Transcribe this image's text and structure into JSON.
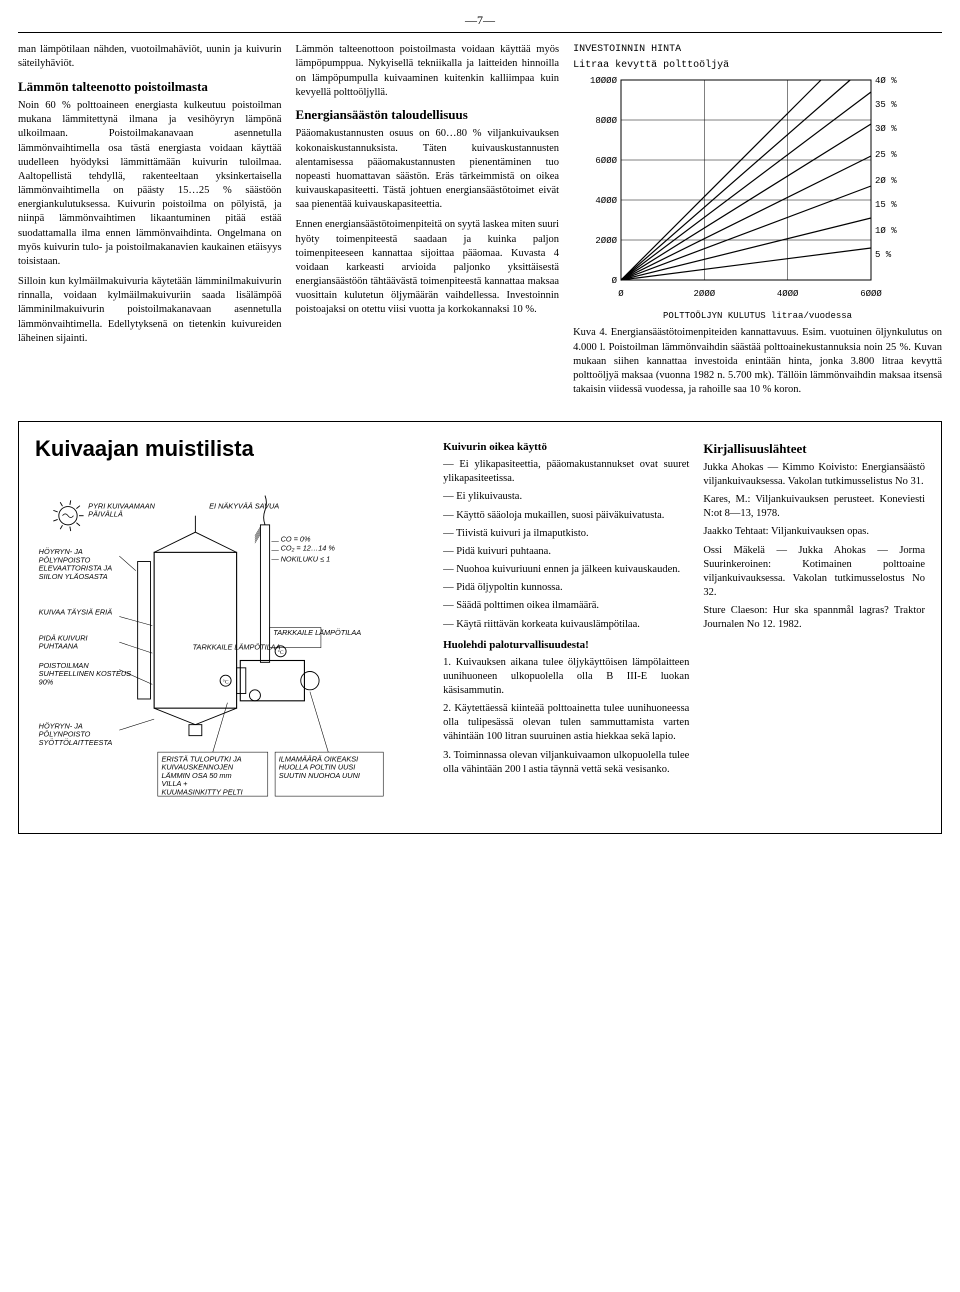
{
  "page_number": "—7—",
  "col1": {
    "p1": "man lämpötilaan nähden, vuotoilmahäviöt, uunin ja kuivurin säteilyhäviöt.",
    "h1": "Lämmön talteenotto poistoilmasta",
    "p2": "Noin 60 % polttoaineen energiasta kulkeutuu poistoilman mukana lämmitettynä ilmana ja vesihöyryn lämpönä ulkoilmaan. Poistoilmakanavaan asennetulla lämmönvaihtimella osa tästä energiasta voidaan käyttää uudelleen hyödyksi lämmittämään kuivurin tuloilmaa. Aaltopellistä tehdyllä, rakenteeltaan yksinkertaisella lämmönvaihtimella on päästy 15…25 % säästöön energiankulutuksessa. Kuivurin poistoilma on pölyistä, ja niinpä lämmönvaihtimen likaantuminen pitää estää suodattamalla ilma ennen lämmönvaihdinta. Ongelmana on myös kuivurin tulo- ja poistoilmakanavien kaukainen etäisyys toisistaan.",
    "p3": "Silloin kun kylmäilmakuivuria käytetään lämminilmakuivurin rinnalla, voidaan kylmäilmakuivuriin saada lisälämpöä lämminilmakuivurin poistoilmakanavaan asennetulla lämmönvaihtimella. Edellytyksenä on tietenkin kuivureiden läheinen sijainti."
  },
  "col2": {
    "p1": "Lämmön talteenottoon poistoilmasta voidaan käyttää myös lämpöpumppua. Nykyisellä tekniikalla ja laitteiden hinnoilla on lämpöpumpulla kuivaaminen kuitenkin kalliimpaa kuin kevyellä polttoöljyllä.",
    "h1": "Energiansäästön taloudellisuus",
    "p2": "Pääomakustannusten osuus on 60…80 % viljankuivauksen kokonaiskustannuksista. Täten kuivauskustannusten alentamisessa pääomakustannusten pienentäminen tuo nopeasti huomattavan säästön. Eräs tärkeimmistä on oikea kuivauskapasiteetti. Tästä johtuen energiansäästötoimet eivät saa pienentää kuivauskapasiteettia.",
    "p3": "Ennen energiansäästötoimenpiteitä on syytä laskea miten suuri hyöty toimenpiteestä saadaan ja kuinka paljon toimenpiteeseen kannattaa sijoittaa pääomaa. Kuvasta 4 voidaan karkeasti arvioida paljonko yksittäisestä energiansäästöön tähtäävästä toimenpiteestä kannattaa maksaa vuosittain kulutetun öljymäärän vaihdellessa. Investoinnin poistoajaksi on otettu viisi vuotta ja korkokannaksi 10 %."
  },
  "chart": {
    "title1": "INVESTOINNIN  HINTA",
    "title2": "Litraa  kevyttä polttoöljyä",
    "x_label": "POLTTOÖLJYN KULUTUS  litraa/vuodessa",
    "x_ticks": [
      "Ø",
      "2ØØØ",
      "4ØØØ",
      "6ØØØ"
    ],
    "y_ticks": [
      "Ø",
      "2ØØØ",
      "4ØØØ",
      "6ØØØ",
      "8ØØØ",
      "1ØØØØ"
    ],
    "pct_labels": [
      "4Ø %",
      "35 %",
      "3Ø %",
      "25 %",
      "2Ø %",
      "15 %",
      "1Ø %",
      "5 %"
    ],
    "xmin": 0,
    "xmax": 6000,
    "ymin": 0,
    "ymax": 10000,
    "series": [
      {
        "end_y": 10000,
        "end_x": 4800
      },
      {
        "end_y": 10000,
        "end_x": 5500
      },
      {
        "end_y": 9400,
        "end_x": 6000
      },
      {
        "end_y": 7800,
        "end_x": 6000
      },
      {
        "end_y": 6200,
        "end_x": 6000
      },
      {
        "end_y": 4700,
        "end_x": 6000
      },
      {
        "end_y": 3100,
        "end_x": 6000
      },
      {
        "end_y": 1600,
        "end_x": 6000
      }
    ],
    "line_color": "#000000",
    "grid_color": "#000000",
    "background": "#ffffff"
  },
  "caption": "Kuva 4. Energiansäästötoimenpiteiden kannattavuus. Esim. vuotuinen öljynkulutus on 4.000 l. Poistoilman lämmönvaihdin säästää polttoainekustannuksia noin 25 %. Kuvan mukaan siihen kannattaa investoida enintään hinta, jonka 3.800 litraa kevyttä polttoöljyä maksaa (vuonna 1982 n. 5.700 mk). Tällöin lämmönvaihdin maksaa itsensä takaisin viidessä vuodessa, ja rahoille saa 10 % koron.",
  "checklist": {
    "title": "Kuivaajan muistilista",
    "diagram": {
      "labels": {
        "sun1": "PYRI KUIVAAMAAN PÄIVÄLLÄ",
        "sun2": "EI NÄKYVÄÄ SAVUA",
        "l1": "HÖYRYN- JA PÖLYNPOISTO ELEVAATTORISTA JA SIILON YLÄOSASTA",
        "l2": "KUIVAA TÄYSIÄ ERIÄ",
        "l3": "PIDÄ KUIVURI PUHTAANA",
        "l4": "POISTOILMAN SUHTEELLINEN KOSTEUS 90%",
        "l5": "HÖYRYN- JA PÖLYNPOISTO SYÖTTÖLAITTEESTA",
        "c1": "TARKKAILE LÄMPÖTILAA",
        "c2": "TARKKAILE LÄMPÖTILAA",
        "r1": "CO = 0%",
        "r2": "CO₂ = 12…14 %",
        "r3": "NOKILUKU ≤ 1",
        "b1": "ERISTÄ TULOPUTKI JA KUIVAUSKENNOJEN LÄMMIN OSA 50 mm VILLA + KUUMASINKITTY PELTI",
        "b2": "ILMAMÄÄRÄ OIKEAKSI HUOLLA POLTIN UUSI SUUTIN NUOHOA UUNI"
      }
    },
    "use": {
      "h": "Kuivurin oikea käyttö",
      "items": [
        "— Ei ylikapasiteettia, pääomakustannukset ovat suuret ylikapasiteetissa.",
        "— Ei ylikuivausta.",
        "— Käyttö sääoloja mukaillen, suosi päiväkuivatusta.",
        "— Tiivistä kuivuri ja ilmaputkisto.",
        "— Pidä kuivuri puhtaana.",
        "— Nuohoa kuivuriuuni ennen ja jälkeen kuivauskauden.",
        "— Pidä öljypoltin kunnossa.",
        "— Säädä polttimen oikea ilmamäärä.",
        "— Käytä riittävän korkeata kuivauslämpötilaa."
      ],
      "h2": "Huolehdi paloturvallisuudesta!",
      "fire": [
        "1. Kuivauksen aikana tulee öljykäyttöisen lämpölaitteen uunihuoneen ulkopuolella olla B III-E luokan käsisammutin.",
        "2. Käytettäessä kiinteää polttoainetta tulee uunihuoneessa olla tulipesässä olevan tulen sammuttamista varten vähintään 100 litran suuruinen astia hiekkaa sekä lapio.",
        "3. Toiminnassa olevan viljankuivaamon ulkopuolella tulee olla vähintään 200 l astia täynnä vettä sekä vesisanko."
      ]
    },
    "refs": {
      "h": "Kirjallisuuslähteet",
      "items": [
        "Jukka Ahokas — Kimmo Koivisto: Energiansäästö viljankuivauksessa. Vakolan tutkimusselistus No 31.",
        "Kares, M.: Viljankuivauksen perusteet. Koneviesti N:ot 8—13, 1978.",
        "Jaakko Tehtaat: Viljankuivauksen opas.",
        "Ossi Mäkelä — Jukka Ahokas — Jorma Suurinkeroinen: Kotimainen polttoaine viljankuivauksessa. Vakolan tutkimusselostus No 32.",
        "Sture Claeson: Hur ska spannmål lagras? Traktor Journalen No 12. 1982."
      ]
    }
  }
}
